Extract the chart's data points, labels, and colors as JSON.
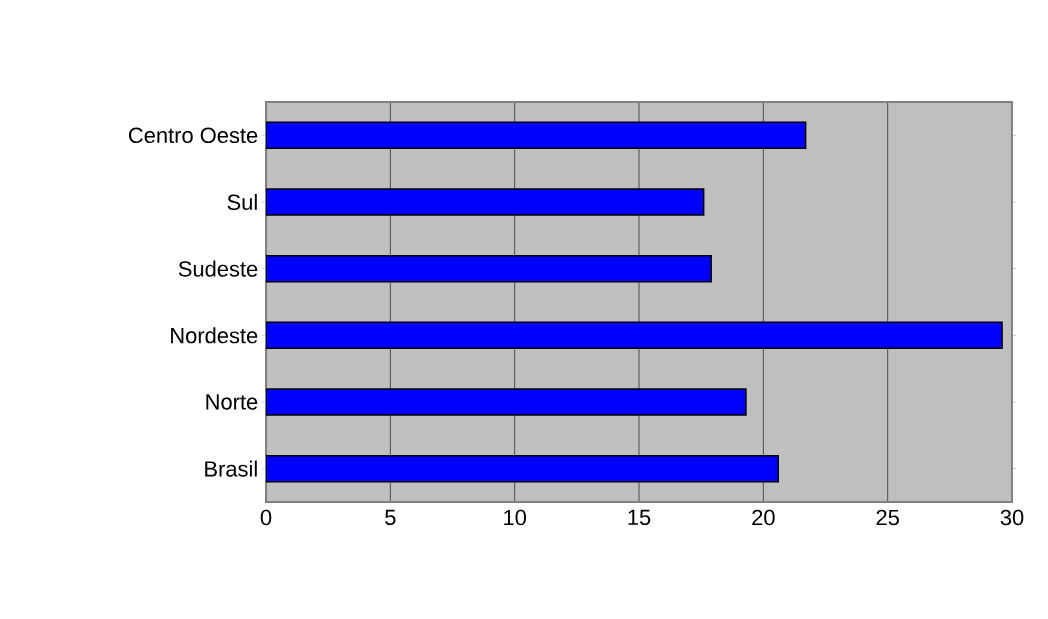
{
  "chart_data": {
    "type": "bar",
    "orientation": "horizontal",
    "categories": [
      "Centro Oeste",
      "Sul",
      "Sudeste",
      "Nordeste",
      "Norte",
      "Brasil"
    ],
    "values": [
      21.7,
      17.6,
      17.9,
      29.6,
      19.3,
      20.6
    ],
    "color": "#0000ff",
    "xlim": [
      0,
      30
    ],
    "xticks": [
      0,
      5,
      10,
      15,
      20,
      25,
      30
    ],
    "grid": "x"
  }
}
